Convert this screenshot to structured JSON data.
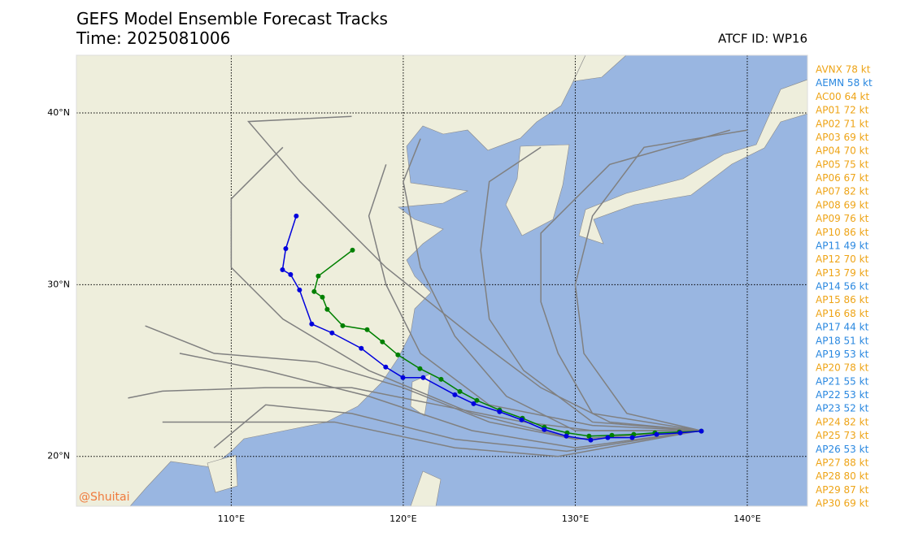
{
  "chart_data": {
    "type": "track-map",
    "title": "GEFS Model Ensemble Forecast Tracks",
    "subtitle": "Time: 2025081006",
    "atcf_id": "ATCF ID: WP16",
    "watermark": "@Shuitai",
    "xlim": [
      101,
      143.5
    ],
    "ylim": [
      17.1,
      43.36
    ],
    "xticks": [
      {
        "value": 110,
        "label": "110°E"
      },
      {
        "value": 120,
        "label": "120°E"
      },
      {
        "value": 130,
        "label": "130°E"
      },
      {
        "value": 140,
        "label": "140°E"
      }
    ],
    "yticks": [
      {
        "value": 20,
        "label": "20°N"
      },
      {
        "value": 30,
        "label": "30°N"
      },
      {
        "value": 40,
        "label": "40°N"
      }
    ],
    "grid": true,
    "legend": [
      {
        "label": "AVNX 78 kt",
        "color": "#eea417"
      },
      {
        "label": "AEMN 58 kt",
        "color": "#2a88e0"
      },
      {
        "label": "AC00 64 kt",
        "color": "#eea417"
      },
      {
        "label": "AP01 72 kt",
        "color": "#eea417"
      },
      {
        "label": "AP02 71 kt",
        "color": "#eea417"
      },
      {
        "label": "AP03 69 kt",
        "color": "#eea417"
      },
      {
        "label": "AP04 70 kt",
        "color": "#eea417"
      },
      {
        "label": "AP05 75 kt",
        "color": "#eea417"
      },
      {
        "label": "AP06 67 kt",
        "color": "#eea417"
      },
      {
        "label": "AP07 82 kt",
        "color": "#eea417"
      },
      {
        "label": "AP08 69 kt",
        "color": "#eea417"
      },
      {
        "label": "AP09 76 kt",
        "color": "#eea417"
      },
      {
        "label": "AP10 86 kt",
        "color": "#eea417"
      },
      {
        "label": "AP11 49 kt",
        "color": "#2a88e0"
      },
      {
        "label": "AP12 70 kt",
        "color": "#eea417"
      },
      {
        "label": "AP13 79 kt",
        "color": "#eea417"
      },
      {
        "label": "AP14 56 kt",
        "color": "#2a88e0"
      },
      {
        "label": "AP15 86 kt",
        "color": "#eea417"
      },
      {
        "label": "AP16 68 kt",
        "color": "#eea417"
      },
      {
        "label": "AP17 44 kt",
        "color": "#2a88e0"
      },
      {
        "label": "AP18 51 kt",
        "color": "#2a88e0"
      },
      {
        "label": "AP19 53 kt",
        "color": "#2a88e0"
      },
      {
        "label": "AP20 78 kt",
        "color": "#eea417"
      },
      {
        "label": "AP21 55 kt",
        "color": "#2a88e0"
      },
      {
        "label": "AP22 53 kt",
        "color": "#2a88e0"
      },
      {
        "label": "AP23 52 kt",
        "color": "#2a88e0"
      },
      {
        "label": "AP24 82 kt",
        "color": "#eea417"
      },
      {
        "label": "AP25 73 kt",
        "color": "#eea417"
      },
      {
        "label": "AP26 53 kt",
        "color": "#2a88e0"
      },
      {
        "label": "AP27 88 kt",
        "color": "#eea417"
      },
      {
        "label": "AP28 80 kt",
        "color": "#eea417"
      },
      {
        "label": "AP29 87 kt",
        "color": "#eea417"
      },
      {
        "label": "AP30 69 kt",
        "color": "#eea417"
      }
    ],
    "tracks": [
      {
        "color": "#808080",
        "lon": [
          137.3,
          130,
          124,
          118,
          112,
          107
        ],
        "lat": [
          21.5,
          20.5,
          21.5,
          23.5,
          25,
          26
        ]
      },
      {
        "color": "#808080",
        "lon": [
          137.3,
          130,
          125,
          120,
          115,
          109,
          105
        ],
        "lat": [
          21.5,
          21,
          22,
          24,
          25.5,
          26,
          27.6
        ]
      },
      {
        "color": "#808080",
        "lon": [
          137.3,
          131,
          125,
          121,
          119,
          118,
          119
        ],
        "lat": [
          21.5,
          21.8,
          23,
          26,
          30,
          34,
          37
        ]
      },
      {
        "color": "#808080",
        "lon": [
          137.3,
          131,
          127,
          125,
          124.5,
          125,
          128
        ],
        "lat": [
          21.5,
          22,
          25,
          28,
          32,
          36,
          38
        ]
      },
      {
        "color": "#808080",
        "lon": [
          137.3,
          131,
          129,
          128,
          128,
          132,
          139
        ],
        "lat": [
          21.5,
          22.5,
          26,
          29,
          33,
          37,
          39
        ]
      },
      {
        "color": "#808080",
        "lon": [
          137.3,
          130,
          126,
          123,
          121,
          120,
          121
        ],
        "lat": [
          21.5,
          21.5,
          23.5,
          27,
          31,
          36,
          38.5
        ]
      },
      {
        "color": "#808080",
        "lon": [
          137.3,
          129,
          123,
          116,
          110,
          106
        ],
        "lat": [
          21.5,
          20,
          20.5,
          22,
          22,
          22
        ]
      },
      {
        "color": "#808080",
        "lon": [
          137.3,
          132,
          128,
          124,
          119,
          114,
          111,
          117
        ],
        "lat": [
          21.5,
          22,
          24,
          27,
          31,
          36,
          39.5,
          39.8
        ]
      },
      {
        "color": "#808080",
        "lon": [
          137.3,
          130,
          124,
          118,
          113,
          110,
          110,
          113
        ],
        "lat": [
          21.5,
          21,
          22.5,
          25,
          28,
          31,
          35,
          38
        ]
      },
      {
        "color": "#808080",
        "lon": [
          137.3,
          131,
          127,
          122,
          117,
          112,
          106,
          104
        ],
        "lat": [
          21.5,
          21.5,
          22,
          23,
          24,
          24,
          23.8,
          23.4
        ]
      },
      {
        "color": "#808080",
        "lon": [
          137.3,
          133,
          130.5,
          130,
          131,
          134,
          140
        ],
        "lat": [
          21.5,
          22.5,
          26,
          30,
          34,
          38,
          39
        ]
      },
      {
        "color": "#808080",
        "lon": [
          137.3,
          129.5,
          123,
          117,
          112,
          109
        ],
        "lat": [
          21.5,
          20.3,
          21,
          22.5,
          23,
          20.5
        ]
      },
      {
        "color": "#008000",
        "lon": [
          137.33,
          136.05,
          134.63,
          133.4,
          132.13,
          130.8,
          129.53,
          128.2,
          126.93,
          125.6,
          124.28,
          123.29,
          122.2,
          120.97,
          119.69,
          118.79,
          117.9,
          116.48,
          115.58,
          115.3,
          114.82,
          115.06,
          117.05
        ],
        "lat": [
          21.47,
          21.42,
          21.37,
          21.28,
          21.23,
          21.18,
          21.37,
          21.7,
          22.22,
          22.7,
          23.26,
          23.78,
          24.49,
          25.11,
          25.91,
          26.67,
          27.38,
          27.61,
          28.56,
          29.27,
          29.6,
          30.5,
          32.01
        ],
        "dots": true
      },
      {
        "color": "#0000dd",
        "lon": [
          137.33,
          136.1,
          134.73,
          133.31,
          131.89,
          130.9,
          129.48,
          128.2,
          126.88,
          125.6,
          124.09,
          123,
          121.16,
          119.98,
          118.98,
          117.56,
          115.86,
          114.68,
          113.97,
          113.45,
          112.98,
          113.17,
          113.78
        ],
        "lat": [
          21.47,
          21.37,
          21.28,
          21.09,
          21.09,
          20.95,
          21.18,
          21.56,
          22.13,
          22.6,
          23.07,
          23.59,
          24.59,
          24.59,
          25.2,
          26.29,
          27.19,
          27.71,
          29.69,
          30.59,
          30.87,
          32.1,
          34
        ],
        "dots": true
      }
    ]
  }
}
